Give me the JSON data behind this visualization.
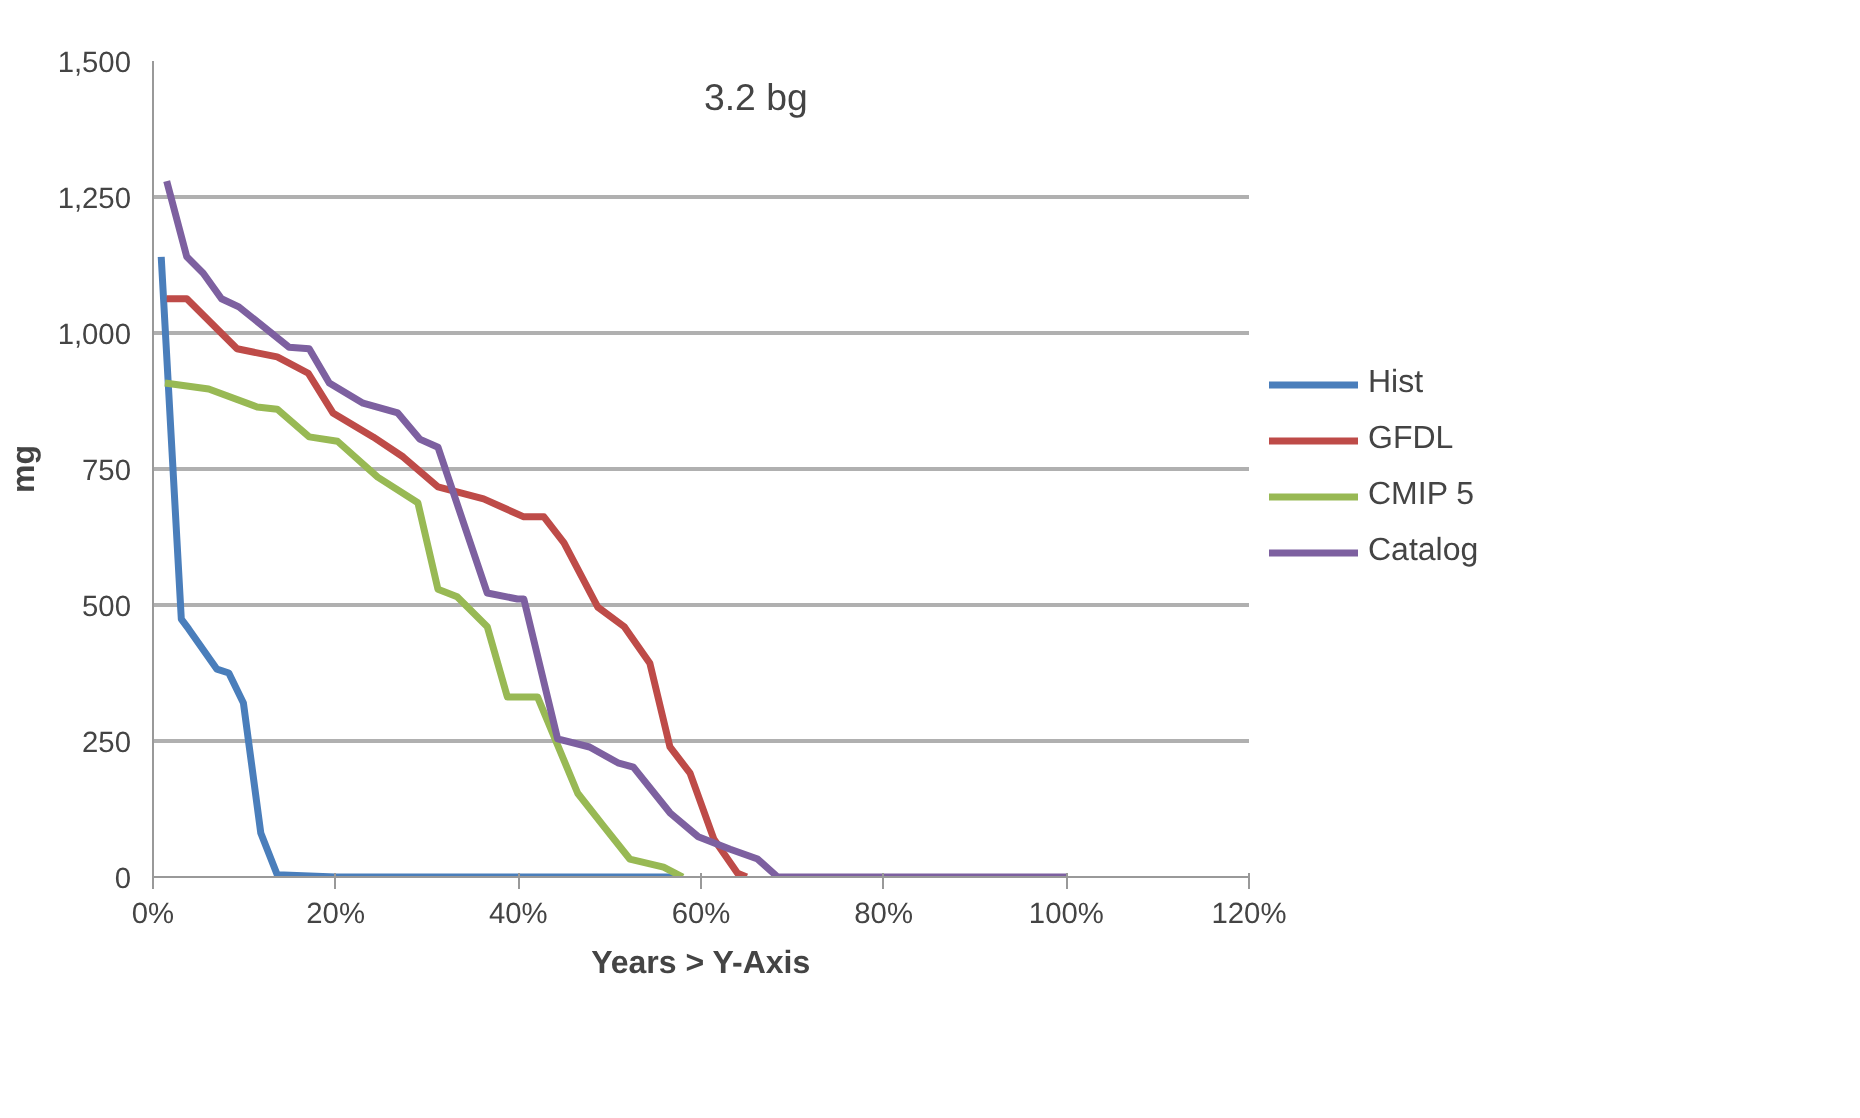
{
  "chart_data": {
    "type": "line",
    "xlabel": "Years > Y-Axis",
    "ylabel": "mg",
    "annotations": [
      "3.2 bg"
    ],
    "xlim": [
      0,
      120
    ],
    "xticks": [
      {
        "value": 0,
        "label": "0%"
      },
      {
        "value": 20,
        "label": "20%"
      },
      {
        "value": 40,
        "label": "40%"
      },
      {
        "value": 60,
        "label": "60%"
      },
      {
        "value": 80,
        "label": "80%"
      },
      {
        "value": 100,
        "label": "100%"
      },
      {
        "value": 120,
        "label": "120%"
      }
    ],
    "ylim": [
      0,
      1500
    ],
    "yticks": [
      0,
      250,
      500,
      750,
      {
        "value": 1000,
        "label": "1,000"
      },
      {
        "value": 1250,
        "label": "1,250"
      },
      {
        "value": 1500,
        "label": "1,500"
      }
    ],
    "grid": "y",
    "legend": "right",
    "marker": "none",
    "line_style": "solid",
    "series": [
      {
        "name": "Hist",
        "color": "#4a7ebb",
        "x": [
          0.9,
          3.1,
          3.9,
          7,
          8.3,
          9.9,
          11.8,
          13.6,
          20,
          30,
          40,
          50,
          58
        ],
        "values": [
          1140,
          474,
          456,
          382,
          375,
          320,
          81,
          4,
          0,
          0,
          0,
          0,
          0
        ]
      },
      {
        "name": "GFDL",
        "color": "#be4b48",
        "x": [
          1.5,
          3.7,
          9.2,
          13.6,
          17,
          19.7,
          24.1,
          27.4,
          31.2,
          36.2,
          40.6,
          42.8,
          45,
          48.7,
          51.6,
          54.4,
          56.6,
          58.8,
          61.4,
          64,
          65
        ],
        "values": [
          1063,
          1063,
          971,
          956,
          926,
          853,
          809,
          772,
          717,
          695,
          662,
          662,
          614,
          496,
          460,
          393,
          239,
          191,
          70,
          7,
          0
        ]
      },
      {
        "name": "CMIP 5",
        "color": "#98b954",
        "x": [
          1.3,
          6.1,
          11.4,
          13.6,
          17.1,
          20.2,
          24.6,
          29,
          31.2,
          33.3,
          36.6,
          38.8,
          42.1,
          46.5,
          49.4,
          52.2,
          55.9,
          58
        ],
        "values": [
          908,
          897,
          864,
          860,
          809,
          801,
          735,
          688,
          529,
          515,
          460,
          331,
          331,
          154,
          92,
          33,
          18,
          0
        ]
      },
      {
        "name": "Catalog",
        "color": "#7d60a0",
        "x": [
          1.5,
          3.7,
          5.5,
          7.5,
          9.4,
          14.9,
          17.1,
          19.3,
          23,
          26.8,
          29.2,
          31.2,
          36.6,
          39.9,
          40.6,
          44.3,
          47.8,
          50.9,
          52.6,
          56.6,
          59.7,
          63.2,
          66.2,
          68.4,
          80,
          100
        ],
        "values": [
          1279,
          1140,
          1110,
          1063,
          1048,
          974,
          971,
          908,
          871,
          853,
          805,
          790,
          522,
          511,
          511,
          254,
          239,
          210,
          202,
          118,
          74,
          51,
          33,
          0,
          0,
          0
        ]
      }
    ]
  }
}
